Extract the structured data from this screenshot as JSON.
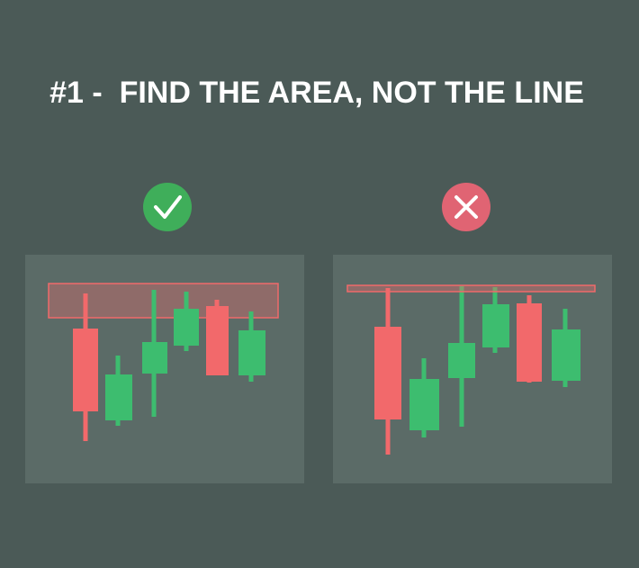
{
  "header": {
    "title": "#1 -  FIND THE AREA, NOT THE LINE"
  }
}
